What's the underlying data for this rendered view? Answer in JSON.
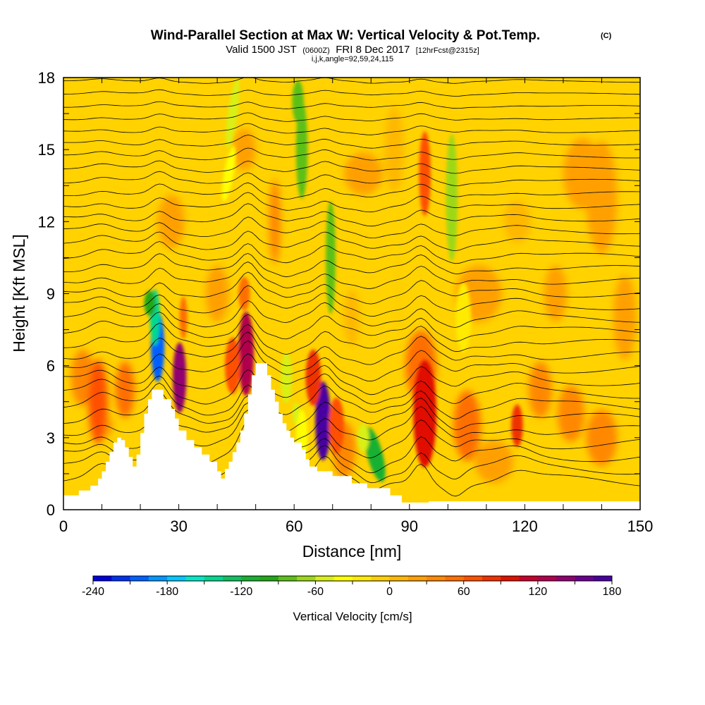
{
  "chart_data": {
    "type": "heatmap",
    "title": "Wind-Parallel Section at Max W: Vertical Velocity & Pot.Temp.",
    "title_mark": "(C)",
    "subtitle_parts": [
      "Valid 1500 JST",
      "(0600Z)",
      "FRI 8 Dec 2017",
      "[12hrFcst@2315z]"
    ],
    "subtitle2": "i,j,k,angle=92,59,24,115",
    "xlabel": "Distance [nm]",
    "ylabel": "Height [Kft MSL]",
    "xlim": [
      0,
      150
    ],
    "ylim": [
      0,
      18
    ],
    "xticks": [
      "0",
      "30",
      "60",
      "90",
      "120",
      "150"
    ],
    "xtick_values": [
      0,
      30,
      60,
      90,
      120,
      150
    ],
    "yticks": [
      "0",
      "3",
      "6",
      "9",
      "12",
      "15",
      "18"
    ],
    "ytick_values": [
      0,
      3,
      6,
      9,
      12,
      15,
      18
    ],
    "grid": false,
    "colorbar": {
      "label": "Vertical Velocity [cm/s]",
      "min": -240,
      "max": 180,
      "step": 15,
      "tick_labels": [
        "-240",
        "-180",
        "-120",
        "-60",
        "0",
        "60",
        "120",
        "180"
      ],
      "tick_values": [
        -240,
        -180,
        -120,
        -60,
        0,
        60,
        120,
        180
      ],
      "colors": [
        "#0000dd",
        "#0030f0",
        "#0060ff",
        "#0098ff",
        "#00c8ff",
        "#00e8c8",
        "#00d890",
        "#10c060",
        "#18b030",
        "#20a818",
        "#5cc018",
        "#9cd818",
        "#d8f018",
        "#ffff00",
        "#ffea00",
        "#ffd000",
        "#ffb800",
        "#ffa000",
        "#ff8800",
        "#ff6e00",
        "#ff5000",
        "#f03000",
        "#e01000",
        "#c8002a",
        "#b0004c",
        "#900070",
        "#6a0090",
        "#4a00a0"
      ]
    },
    "terrain": [
      [
        0,
        0.6
      ],
      [
        4,
        0.6
      ],
      [
        4,
        0.8
      ],
      [
        7,
        0.8
      ],
      [
        7,
        1.0
      ],
      [
        9,
        1.0
      ],
      [
        9,
        1.3
      ],
      [
        10,
        1.3
      ],
      [
        10,
        1.6
      ],
      [
        11,
        1.6
      ],
      [
        11,
        2.0
      ],
      [
        12,
        2.0
      ],
      [
        12,
        2.4
      ],
      [
        13,
        2.4
      ],
      [
        13,
        2.8
      ],
      [
        14,
        2.8
      ],
      [
        14,
        3.0
      ],
      [
        15,
        3.0
      ],
      [
        15,
        2.9
      ],
      [
        16,
        2.9
      ],
      [
        16,
        2.6
      ],
      [
        17,
        2.6
      ],
      [
        17,
        2.2
      ],
      [
        18,
        2.2
      ],
      [
        18,
        1.8
      ],
      [
        19,
        1.8
      ],
      [
        19,
        2.3
      ],
      [
        20,
        2.3
      ],
      [
        20,
        3.2
      ],
      [
        21,
        3.2
      ],
      [
        21,
        4.0
      ],
      [
        22,
        4.0
      ],
      [
        22,
        4.6
      ],
      [
        23,
        4.6
      ],
      [
        23,
        5.0
      ],
      [
        26,
        5.0
      ],
      [
        26,
        4.6
      ],
      [
        28,
        4.6
      ],
      [
        28,
        4.2
      ],
      [
        29,
        4.2
      ],
      [
        29,
        3.8
      ],
      [
        30,
        3.8
      ],
      [
        30,
        3.3
      ],
      [
        32,
        3.3
      ],
      [
        32,
        2.9
      ],
      [
        34,
        2.9
      ],
      [
        34,
        2.6
      ],
      [
        36,
        2.6
      ],
      [
        36,
        2.3
      ],
      [
        38,
        2.3
      ],
      [
        38,
        2.0
      ],
      [
        40,
        2.0
      ],
      [
        40,
        1.6
      ],
      [
        41,
        1.6
      ],
      [
        41,
        1.3
      ],
      [
        42,
        1.3
      ],
      [
        42,
        1.7
      ],
      [
        43,
        1.7
      ],
      [
        43,
        2.0
      ],
      [
        44,
        2.0
      ],
      [
        44,
        2.4
      ],
      [
        45,
        2.4
      ],
      [
        45,
        2.8
      ],
      [
        46,
        2.8
      ],
      [
        46,
        3.3
      ],
      [
        47,
        3.3
      ],
      [
        47,
        4.0
      ],
      [
        48,
        4.0
      ],
      [
        48,
        4.8
      ],
      [
        49,
        4.8
      ],
      [
        49,
        5.6
      ],
      [
        50,
        5.6
      ],
      [
        50,
        6.1
      ],
      [
        53,
        6.1
      ],
      [
        53,
        5.6
      ],
      [
        54,
        5.6
      ],
      [
        54,
        5.0
      ],
      [
        55,
        5.0
      ],
      [
        55,
        4.5
      ],
      [
        56,
        4.5
      ],
      [
        56,
        4.0
      ],
      [
        57,
        4.0
      ],
      [
        57,
        3.6
      ],
      [
        58,
        3.6
      ],
      [
        58,
        3.3
      ],
      [
        59,
        3.3
      ],
      [
        59,
        3.0
      ],
      [
        60,
        3.0
      ],
      [
        60,
        2.8
      ],
      [
        62,
        2.8
      ],
      [
        62,
        2.5
      ],
      [
        63,
        2.5
      ],
      [
        63,
        2.1
      ],
      [
        64,
        2.1
      ],
      [
        64,
        1.8
      ],
      [
        66,
        1.8
      ],
      [
        66,
        1.6
      ],
      [
        70,
        1.6
      ],
      [
        70,
        1.4
      ],
      [
        75,
        1.4
      ],
      [
        75,
        1.1
      ],
      [
        79,
        1.1
      ],
      [
        79,
        0.9
      ],
      [
        85,
        0.9
      ],
      [
        85,
        0.6
      ],
      [
        88,
        0.6
      ],
      [
        88,
        0.3
      ],
      [
        95,
        0.3
      ],
      [
        95,
        0.35
      ],
      [
        150,
        0.35
      ],
      [
        150,
        0
      ]
    ]
  }
}
